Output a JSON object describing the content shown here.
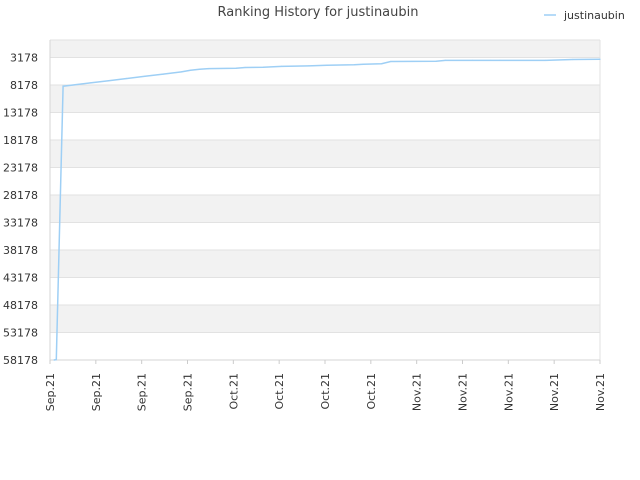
{
  "chart_data": {
    "type": "line",
    "title": "Ranking History for justinaubin",
    "xlabel": "",
    "ylabel": "",
    "y_inverted": true,
    "ylim": [
      58178,
      0
    ],
    "yticks": [
      "3178",
      "8178",
      "13178",
      "18178",
      "23178",
      "28178",
      "33178",
      "38178",
      "43178",
      "48178",
      "53178",
      "58178"
    ],
    "xticks": [
      "Sep.21",
      "Sep.21",
      "Sep.21",
      "Sep.21",
      "Oct.21",
      "Oct.21",
      "Oct.21",
      "Oct.21",
      "Nov.21",
      "Nov.21",
      "Nov.21",
      "Nov.21",
      "Nov.21"
    ],
    "grid": true,
    "legend": "top-right",
    "colors": {
      "series": "#9ecff5",
      "band": "#f2f2f2",
      "grid": "#e2e2e2"
    },
    "series": [
      {
        "name": "justinaubin",
        "x": [
          0,
          0.25,
          1,
          3,
          4,
          6,
          8,
          10,
          12,
          14,
          15,
          16,
          17,
          20,
          21,
          23,
          25,
          28,
          30,
          33,
          34,
          36,
          37,
          42,
          43,
          46,
          48,
          49,
          54,
          57,
          60
        ],
        "y": [
          58178,
          58100,
          8400,
          8000,
          7800,
          7400,
          7000,
          6600,
          6200,
          5800,
          5500,
          5300,
          5200,
          5150,
          5000,
          4950,
          4800,
          4700,
          4600,
          4500,
          4400,
          4300,
          3900,
          3850,
          3700,
          3700,
          3700,
          3700,
          3700,
          3550,
          3500
        ]
      }
    ]
  }
}
